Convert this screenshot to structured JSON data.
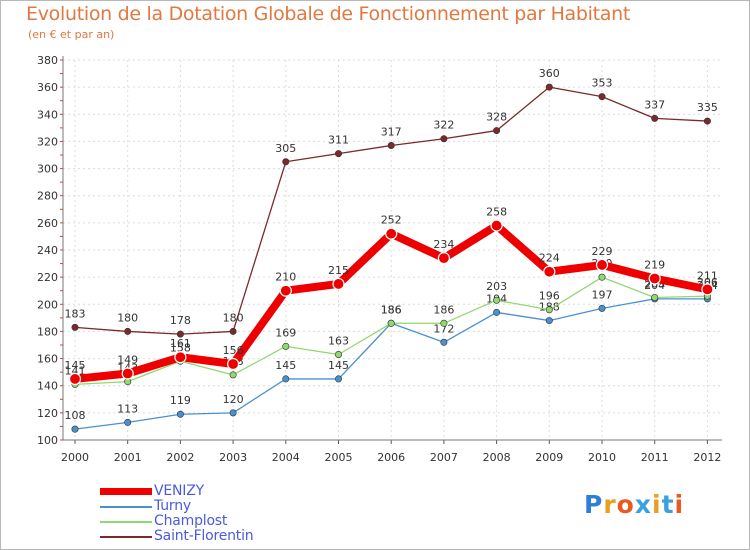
{
  "title": "Evolution de la Dotation Globale de Fonctionnement par Habitant",
  "subtitle": "(en € et par an)",
  "logo": {
    "text": "Proxiti",
    "letter_colors": [
      "#2b7fd4",
      "#e8a020",
      "#e85a20",
      "#3aa0e0",
      "#e8a020",
      "#3aa0e0",
      "#e85a20"
    ]
  },
  "chart_data": {
    "type": "line",
    "title": "Evolution de la Dotation Globale de Fonctionnement par Habitant",
    "subtitle": "(en € et par an)",
    "xlabel": "",
    "ylabel": "",
    "ylim": [
      100,
      380
    ],
    "yticks": [
      100,
      120,
      140,
      160,
      180,
      200,
      220,
      240,
      260,
      280,
      300,
      320,
      340,
      360,
      380
    ],
    "grid": true,
    "legend_position": "bottom-left",
    "categories": [
      "2000",
      "2001",
      "2002",
      "2003",
      "2004",
      "2005",
      "2006",
      "2007",
      "2008",
      "2009",
      "2010",
      "2011",
      "2012"
    ],
    "series": [
      {
        "name": "Saint-Florentin",
        "color": "#7a2a2a",
        "line_width": "thin",
        "values": [
          183,
          180,
          178,
          180,
          305,
          311,
          317,
          322,
          328,
          360,
          353,
          337,
          335
        ]
      },
      {
        "name": "Turny",
        "color": "#4a90d0",
        "line_width": "thin",
        "values": [
          108,
          113,
          119,
          120,
          145,
          145,
          186,
          172,
          194,
          188,
          197,
          204,
          204
        ]
      },
      {
        "name": "Champlost",
        "color": "#90d870",
        "line_width": "thin",
        "values": [
          141,
          143,
          158,
          148,
          169,
          163,
          186,
          186,
          203,
          196,
          220,
          205,
          206
        ]
      },
      {
        "name": "VENIZY",
        "color": "#ee0000",
        "line_width": "thick",
        "values": [
          145,
          149,
          161,
          156,
          210,
          215,
          252,
          234,
          258,
          224,
          229,
          219,
          211
        ]
      }
    ],
    "legend_order": [
      "VENIZY",
      "Turny",
      "Champlost",
      "Saint-Florentin"
    ]
  }
}
